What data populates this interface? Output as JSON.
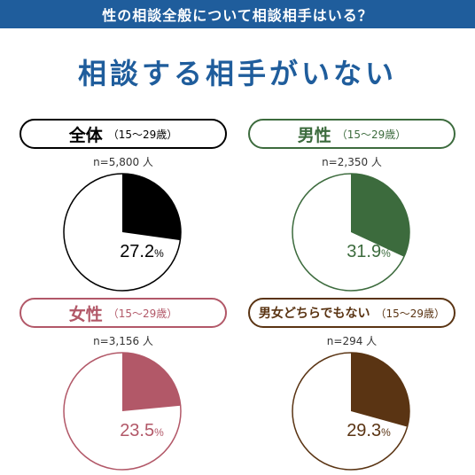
{
  "header": {
    "title": "性の相談全般について相談相手はいる？"
  },
  "main_title": "相談する相手がいない",
  "chart_data": [
    {
      "type": "pie",
      "title": "全体",
      "subtitle": "（15～29歳）",
      "n_label": "n=5,800 人",
      "values": [
        27.2,
        72.8
      ],
      "percent_label": "27.2",
      "unit": "%",
      "color": "#000000",
      "text_color": "#000000"
    },
    {
      "type": "pie",
      "title": "男性",
      "subtitle": "（15～29歳）",
      "n_label": "n=2,350 人",
      "values": [
        31.9,
        68.1
      ],
      "percent_label": "31.9",
      "unit": "%",
      "color": "#3c6b3d",
      "text_color": "#3c6b3d"
    },
    {
      "type": "pie",
      "title": "女性",
      "subtitle": "（15～29歳）",
      "n_label": "n=3,156 人",
      "values": [
        23.5,
        76.5
      ],
      "percent_label": "23.5",
      "unit": "%",
      "color": "#b25868",
      "text_color": "#b25868"
    },
    {
      "type": "pie",
      "title": "男女どちらでもない",
      "subtitle": "（15～29歳）",
      "n_label": "n=294 人",
      "values": [
        29.3,
        70.7
      ],
      "percent_label": "29.3",
      "unit": "%",
      "color": "#5a3413",
      "text_color": "#5a3413"
    }
  ]
}
